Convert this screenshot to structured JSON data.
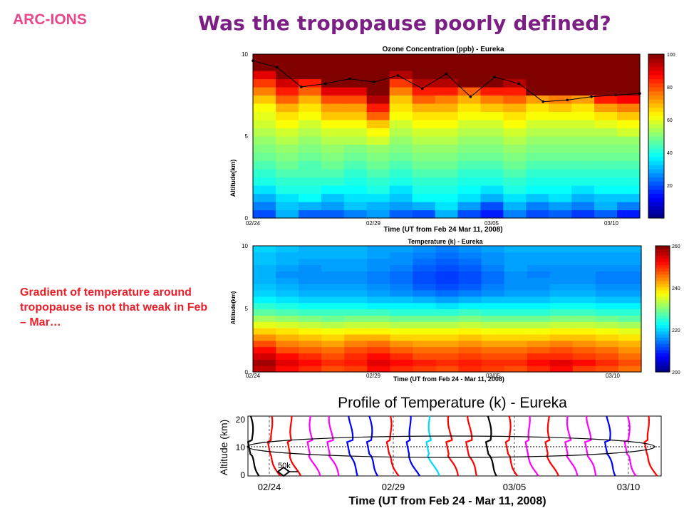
{
  "header": {
    "logo": "ARC-IONS",
    "title": "Was the tropopause poorly defined?"
  },
  "annotation": "Gradient of temperature around tropopause is not that weak in Feb – Mar…",
  "chart_data": [
    {
      "type": "heatmap",
      "title": "Ozone Concentration (ppb) - Eureka",
      "xlabel": "Time (UT from Feb 24 Mar 11, 2008)",
      "ylabel": "Altitude(km)",
      "xticks": [
        "02/24",
        "02/29",
        "03/05",
        "03/10"
      ],
      "yticks": [
        "0",
        "5",
        "10"
      ],
      "ylim": [
        0,
        10
      ],
      "colorbar": {
        "min": 0,
        "max": 100,
        "ticks": [
          "20",
          "40",
          "60",
          "80",
          "100"
        ],
        "colormap": "jet"
      },
      "altitude_levels": [
        0.25,
        0.75,
        1.25,
        1.75,
        2.25,
        2.75,
        3.25,
        3.75,
        4.25,
        4.75,
        5.25,
        5.75,
        6.25,
        6.75,
        7.25,
        7.75,
        8.25,
        8.75,
        9.25,
        9.75
      ],
      "tropopause_km": [
        9.6,
        9.2,
        8.0,
        8.2,
        8.5,
        8.3,
        8.7,
        7.9,
        8.8,
        7.4,
        8.6,
        8.2,
        7.1,
        7.2,
        7.4,
        7.5,
        7.6
      ],
      "values": [
        [
          20,
          30,
          22,
          22,
          25,
          28,
          22,
          20,
          30,
          20,
          15,
          25,
          20,
          22,
          18,
          22,
          15
        ],
        [
          25,
          32,
          30,
          28,
          32,
          30,
          28,
          30,
          35,
          28,
          20,
          30,
          25,
          28,
          25,
          30,
          25
        ],
        [
          30,
          35,
          38,
          32,
          35,
          35,
          32,
          38,
          38,
          35,
          30,
          35,
          32,
          35,
          30,
          32,
          32
        ],
        [
          35,
          40,
          40,
          38,
          38,
          40,
          35,
          40,
          40,
          38,
          35,
          40,
          38,
          38,
          35,
          38,
          38
        ],
        [
          40,
          42,
          42,
          42,
          40,
          42,
          40,
          42,
          42,
          40,
          40,
          42,
          40,
          40,
          40,
          40,
          40
        ],
        [
          42,
          45,
          45,
          45,
          42,
          45,
          42,
          45,
          45,
          42,
          42,
          45,
          42,
          42,
          42,
          42,
          42
        ],
        [
          45,
          48,
          45,
          48,
          45,
          48,
          45,
          48,
          48,
          45,
          45,
          48,
          45,
          45,
          45,
          45,
          45
        ],
        [
          48,
          50,
          48,
          50,
          48,
          50,
          48,
          50,
          50,
          48,
          48,
          50,
          48,
          48,
          48,
          48,
          48
        ],
        [
          50,
          52,
          50,
          52,
          50,
          52,
          50,
          52,
          52,
          50,
          50,
          52,
          50,
          50,
          50,
          50,
          50
        ],
        [
          52,
          55,
          52,
          55,
          55,
          58,
          52,
          55,
          55,
          52,
          52,
          55,
          52,
          52,
          52,
          52,
          52
        ],
        [
          55,
          58,
          55,
          58,
          58,
          62,
          55,
          58,
          58,
          55,
          55,
          58,
          55,
          55,
          55,
          55,
          58
        ],
        [
          58,
          62,
          58,
          62,
          62,
          68,
          58,
          62,
          62,
          58,
          58,
          62,
          58,
          58,
          58,
          60,
          62
        ],
        [
          60,
          65,
          62,
          68,
          68,
          78,
          62,
          65,
          65,
          62,
          62,
          65,
          62,
          62,
          62,
          65,
          68
        ],
        [
          62,
          70,
          65,
          72,
          72,
          85,
          65,
          70,
          70,
          65,
          68,
          70,
          65,
          68,
          65,
          72,
          75
        ],
        [
          68,
          78,
          70,
          80,
          80,
          95,
          68,
          78,
          75,
          70,
          75,
          78,
          72,
          75,
          72,
          85,
          88
        ],
        [
          75,
          85,
          78,
          90,
          90,
          100,
          75,
          85,
          85,
          78,
          85,
          85,
          100,
          100,
          100,
          100,
          100
        ],
        [
          82,
          92,
          85,
          100,
          100,
          100,
          82,
          95,
          95,
          100,
          100,
          95,
          100,
          100,
          100,
          100,
          100
        ],
        [
          90,
          100,
          100,
          100,
          100,
          100,
          95,
          100,
          100,
          100,
          100,
          100,
          100,
          100,
          100,
          100,
          100
        ],
        [
          100,
          100,
          100,
          100,
          100,
          100,
          100,
          100,
          100,
          100,
          100,
          100,
          100,
          100,
          100,
          100,
          100
        ],
        [
          100,
          100,
          100,
          100,
          100,
          100,
          100,
          100,
          100,
          100,
          100,
          100,
          100,
          100,
          100,
          100,
          100
        ]
      ]
    },
    {
      "type": "heatmap",
      "title": "Temperature (k) - Eureka",
      "xlabel": "Time (UT from Feb 24 - Mar 11, 2008)",
      "ylabel": "Altitude(km)",
      "xticks": [
        "02/24",
        "02/29",
        "03/05",
        "03/10"
      ],
      "yticks": [
        "0",
        "5",
        "10"
      ],
      "ylim": [
        0,
        10
      ],
      "colorbar": {
        "min": 200,
        "max": 260,
        "ticks": [
          "200",
          "220",
          "240",
          "260"
        ],
        "colormap": "jet"
      },
      "altitude_levels": [
        0.25,
        0.75,
        1.25,
        1.75,
        2.25,
        2.75,
        3.25,
        3.75,
        4.25,
        4.75,
        5.25,
        5.75,
        6.25,
        6.75,
        7.25,
        7.75,
        8.25,
        8.75,
        9.25,
        9.75
      ],
      "values": [
        [
          256,
          252,
          250,
          248,
          249,
          252,
          250,
          249,
          248,
          250,
          249,
          248,
          250,
          252,
          249,
          248,
          246
        ],
        [
          258,
          254,
          252,
          250,
          251,
          254,
          252,
          251,
          250,
          251,
          250,
          250,
          252,
          254,
          252,
          250,
          248
        ],
        [
          255,
          252,
          250,
          248,
          250,
          252,
          250,
          248,
          248,
          249,
          248,
          248,
          250,
          250,
          249,
          248,
          246
        ],
        [
          252,
          248,
          247,
          246,
          248,
          249,
          247,
          246,
          246,
          247,
          246,
          246,
          247,
          248,
          247,
          246,
          244
        ],
        [
          248,
          245,
          244,
          243,
          245,
          246,
          244,
          243,
          243,
          244,
          243,
          243,
          244,
          245,
          244,
          243,
          242
        ],
        [
          244,
          242,
          241,
          240,
          242,
          242,
          240,
          240,
          240,
          241,
          240,
          240,
          240,
          241,
          241,
          240,
          239
        ],
        [
          240,
          239,
          238,
          237,
          238,
          238,
          237,
          237,
          237,
          238,
          237,
          237,
          237,
          238,
          238,
          237,
          236
        ],
        [
          236,
          235,
          234,
          233,
          234,
          234,
          233,
          233,
          233,
          234,
          233,
          233,
          233,
          234,
          234,
          233,
          232
        ],
        [
          232,
          231,
          230,
          229,
          230,
          230,
          229,
          229,
          229,
          230,
          229,
          229,
          229,
          230,
          230,
          229,
          228
        ],
        [
          228,
          227,
          226,
          226,
          226,
          226,
          225,
          225,
          225,
          226,
          225,
          225,
          225,
          226,
          226,
          225,
          225
        ],
        [
          225,
          224,
          223,
          223,
          223,
          222,
          222,
          222,
          221,
          222,
          222,
          222,
          222,
          223,
          223,
          222,
          222
        ],
        [
          222,
          221,
          220,
          220,
          220,
          219,
          219,
          218,
          217,
          218,
          219,
          219,
          219,
          220,
          220,
          219,
          219
        ],
        [
          220,
          219,
          218,
          218,
          218,
          217,
          216,
          215,
          214,
          215,
          216,
          217,
          217,
          218,
          218,
          217,
          217
        ],
        [
          219,
          218,
          217,
          217,
          217,
          216,
          215,
          213,
          212,
          213,
          215,
          216,
          216,
          217,
          217,
          216,
          216
        ],
        [
          218,
          217,
          216,
          216,
          216,
          215,
          214,
          212,
          211,
          212,
          214,
          216,
          216,
          216,
          216,
          215,
          215
        ],
        [
          218,
          216,
          216,
          216,
          216,
          215,
          214,
          212,
          211,
          212,
          214,
          216,
          215,
          216,
          216,
          215,
          215
        ],
        [
          218,
          217,
          216,
          217,
          217,
          216,
          215,
          213,
          212,
          213,
          215,
          217,
          216,
          216,
          216,
          216,
          216
        ],
        [
          219,
          218,
          217,
          217,
          217,
          216,
          216,
          214,
          213,
          214,
          216,
          217,
          217,
          217,
          217,
          217,
          217
        ],
        [
          219,
          218,
          218,
          218,
          218,
          217,
          216,
          215,
          214,
          215,
          216,
          217,
          217,
          217,
          217,
          217,
          217
        ],
        [
          220,
          219,
          218,
          218,
          218,
          217,
          217,
          216,
          215,
          216,
          217,
          218,
          218,
          218,
          218,
          218,
          218
        ]
      ]
    },
    {
      "type": "line",
      "title": "Profile of Temperature (k) - Eureka",
      "xlabel": "Time (UT from Feb 24 - Mar 11, 2008)",
      "ylabel": "Altitude (km)",
      "xticks": [
        "02/24",
        "02/29",
        "03/05",
        "03/10"
      ],
      "yticks": [
        "0",
        "10",
        "20"
      ],
      "ylim": [
        0,
        20
      ],
      "scale_marker": "50k",
      "profile_colors": [
        "#000000",
        "#ff0000",
        "#ff0000",
        "#ff00ff",
        "#ff00ff",
        "#0000ff",
        "#0000ff",
        "#ff0000",
        "#0000ff",
        "#00d8ff",
        "#ff0000",
        "#ff0000",
        "#000000",
        "#ff0000",
        "#ff00ff",
        "#ff0000",
        "#ff00ff",
        "#ff00ff",
        "#0000ff",
        "#ff00ff",
        "#ff0000"
      ]
    }
  ]
}
